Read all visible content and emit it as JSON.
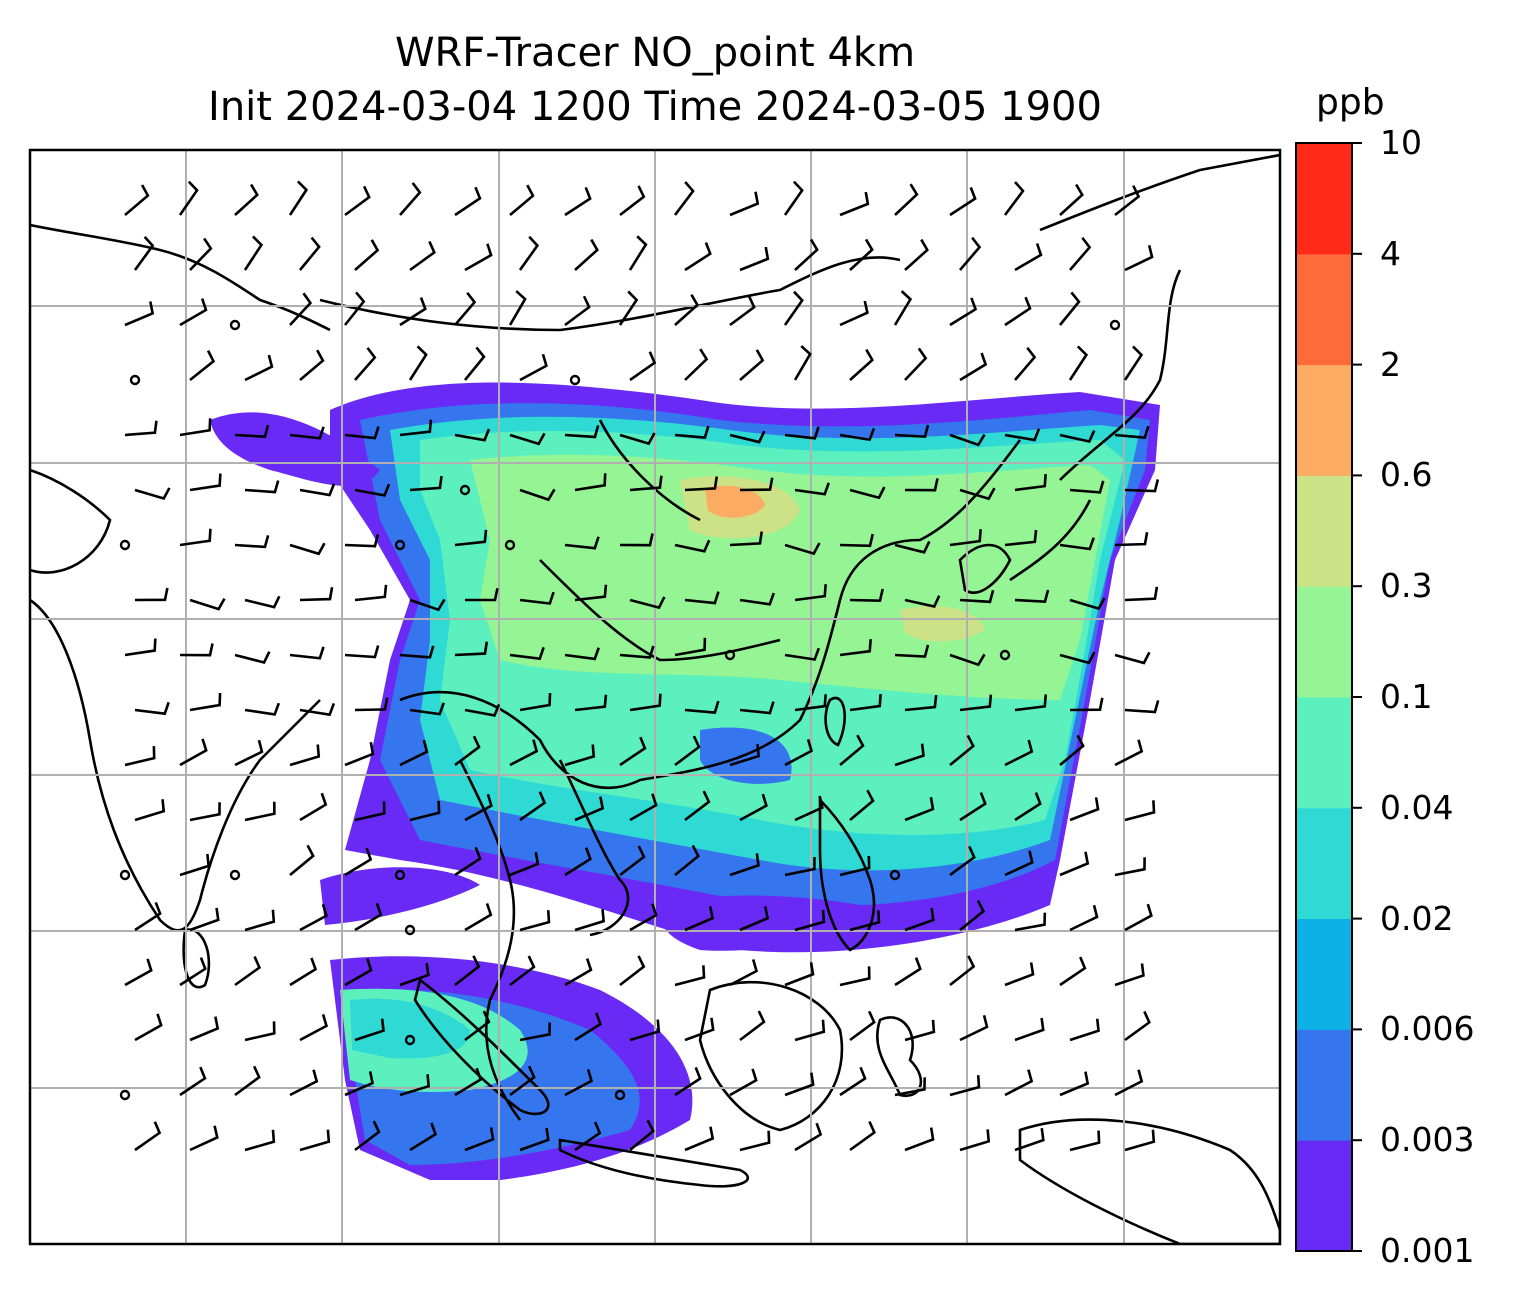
{
  "chart_data": {
    "type": "heatmap",
    "title": "WRF-Tracer NO_point 4km",
    "subtitle": "Init 2024-03-04 1200 Time 2024-03-05 1900",
    "colorbar": {
      "unit": "ppb",
      "levels": [
        "0.001",
        "0.003",
        "0.006",
        "0.02",
        "0.04",
        "0.1",
        "0.3",
        "0.6",
        "2",
        "4",
        "10"
      ],
      "colors": [
        "#6a2af5",
        "#3575ee",
        "#0eb1e6",
        "#2fd9d4",
        "#5cf0be",
        "#95f494",
        "#cde186",
        "#fbac62",
        "#fe6b3a",
        "#ff2a17"
      ]
    },
    "grid": true,
    "overlays": [
      "coastlines",
      "country borders",
      "wind barbs"
    ]
  }
}
